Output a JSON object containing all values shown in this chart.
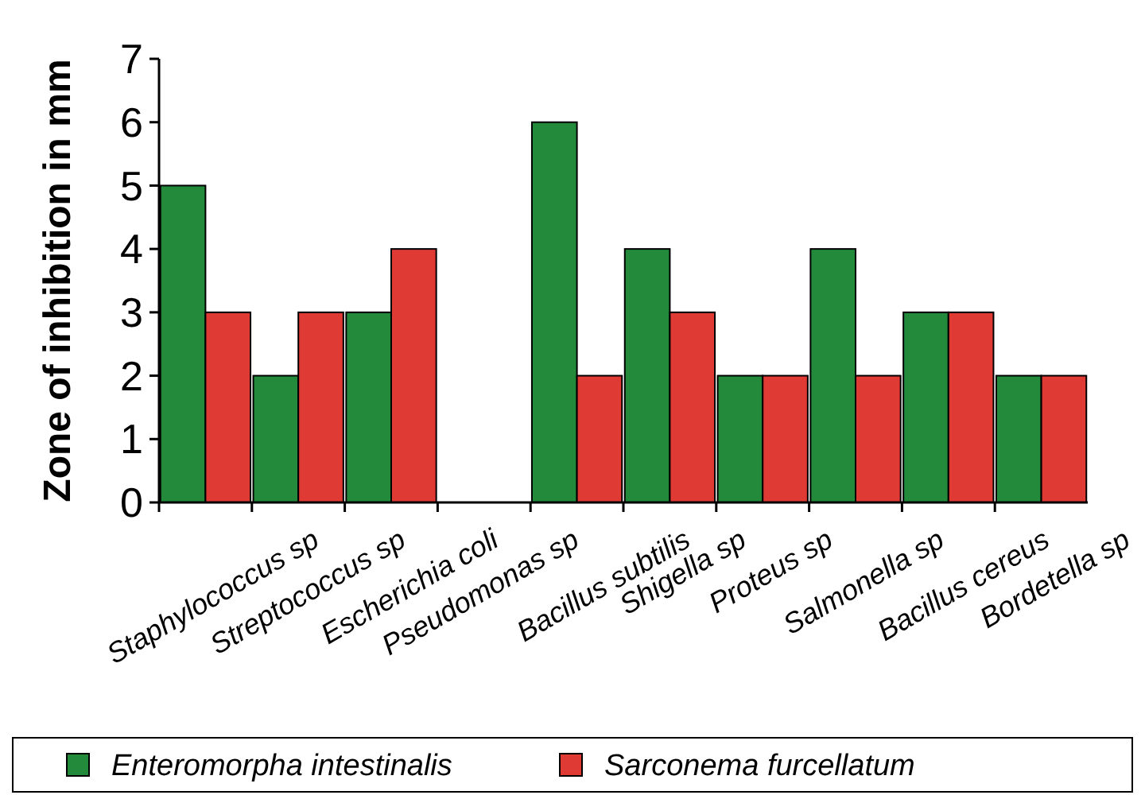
{
  "chart_data": {
    "type": "bar",
    "ylabel": "Zone of inhibition in mm",
    "categories": [
      "Staphylococcus sp",
      "Streptococcus sp",
      "Escherichia coli",
      "Pseudomonas sp",
      "Bacillus subtilis",
      "Shigella sp",
      "Proteus sp",
      "Salmonella sp",
      "Bacillus cereus",
      "Bordetella sp"
    ],
    "series": [
      {
        "name": "Enteromorpha intestinalis",
        "color": "#238a3c",
        "values": [
          5,
          2,
          3,
          null,
          6,
          4,
          2,
          4,
          3,
          2
        ]
      },
      {
        "name": "Sarconema furcellatum",
        "color": "#e03a35",
        "values": [
          3,
          3,
          4,
          null,
          2,
          3,
          2,
          2,
          3,
          2
        ]
      }
    ],
    "ylim": [
      0,
      7
    ],
    "yticks": [
      0,
      1,
      2,
      3,
      4,
      5,
      6,
      7
    ],
    "legend": "bottom",
    "grid": false
  }
}
